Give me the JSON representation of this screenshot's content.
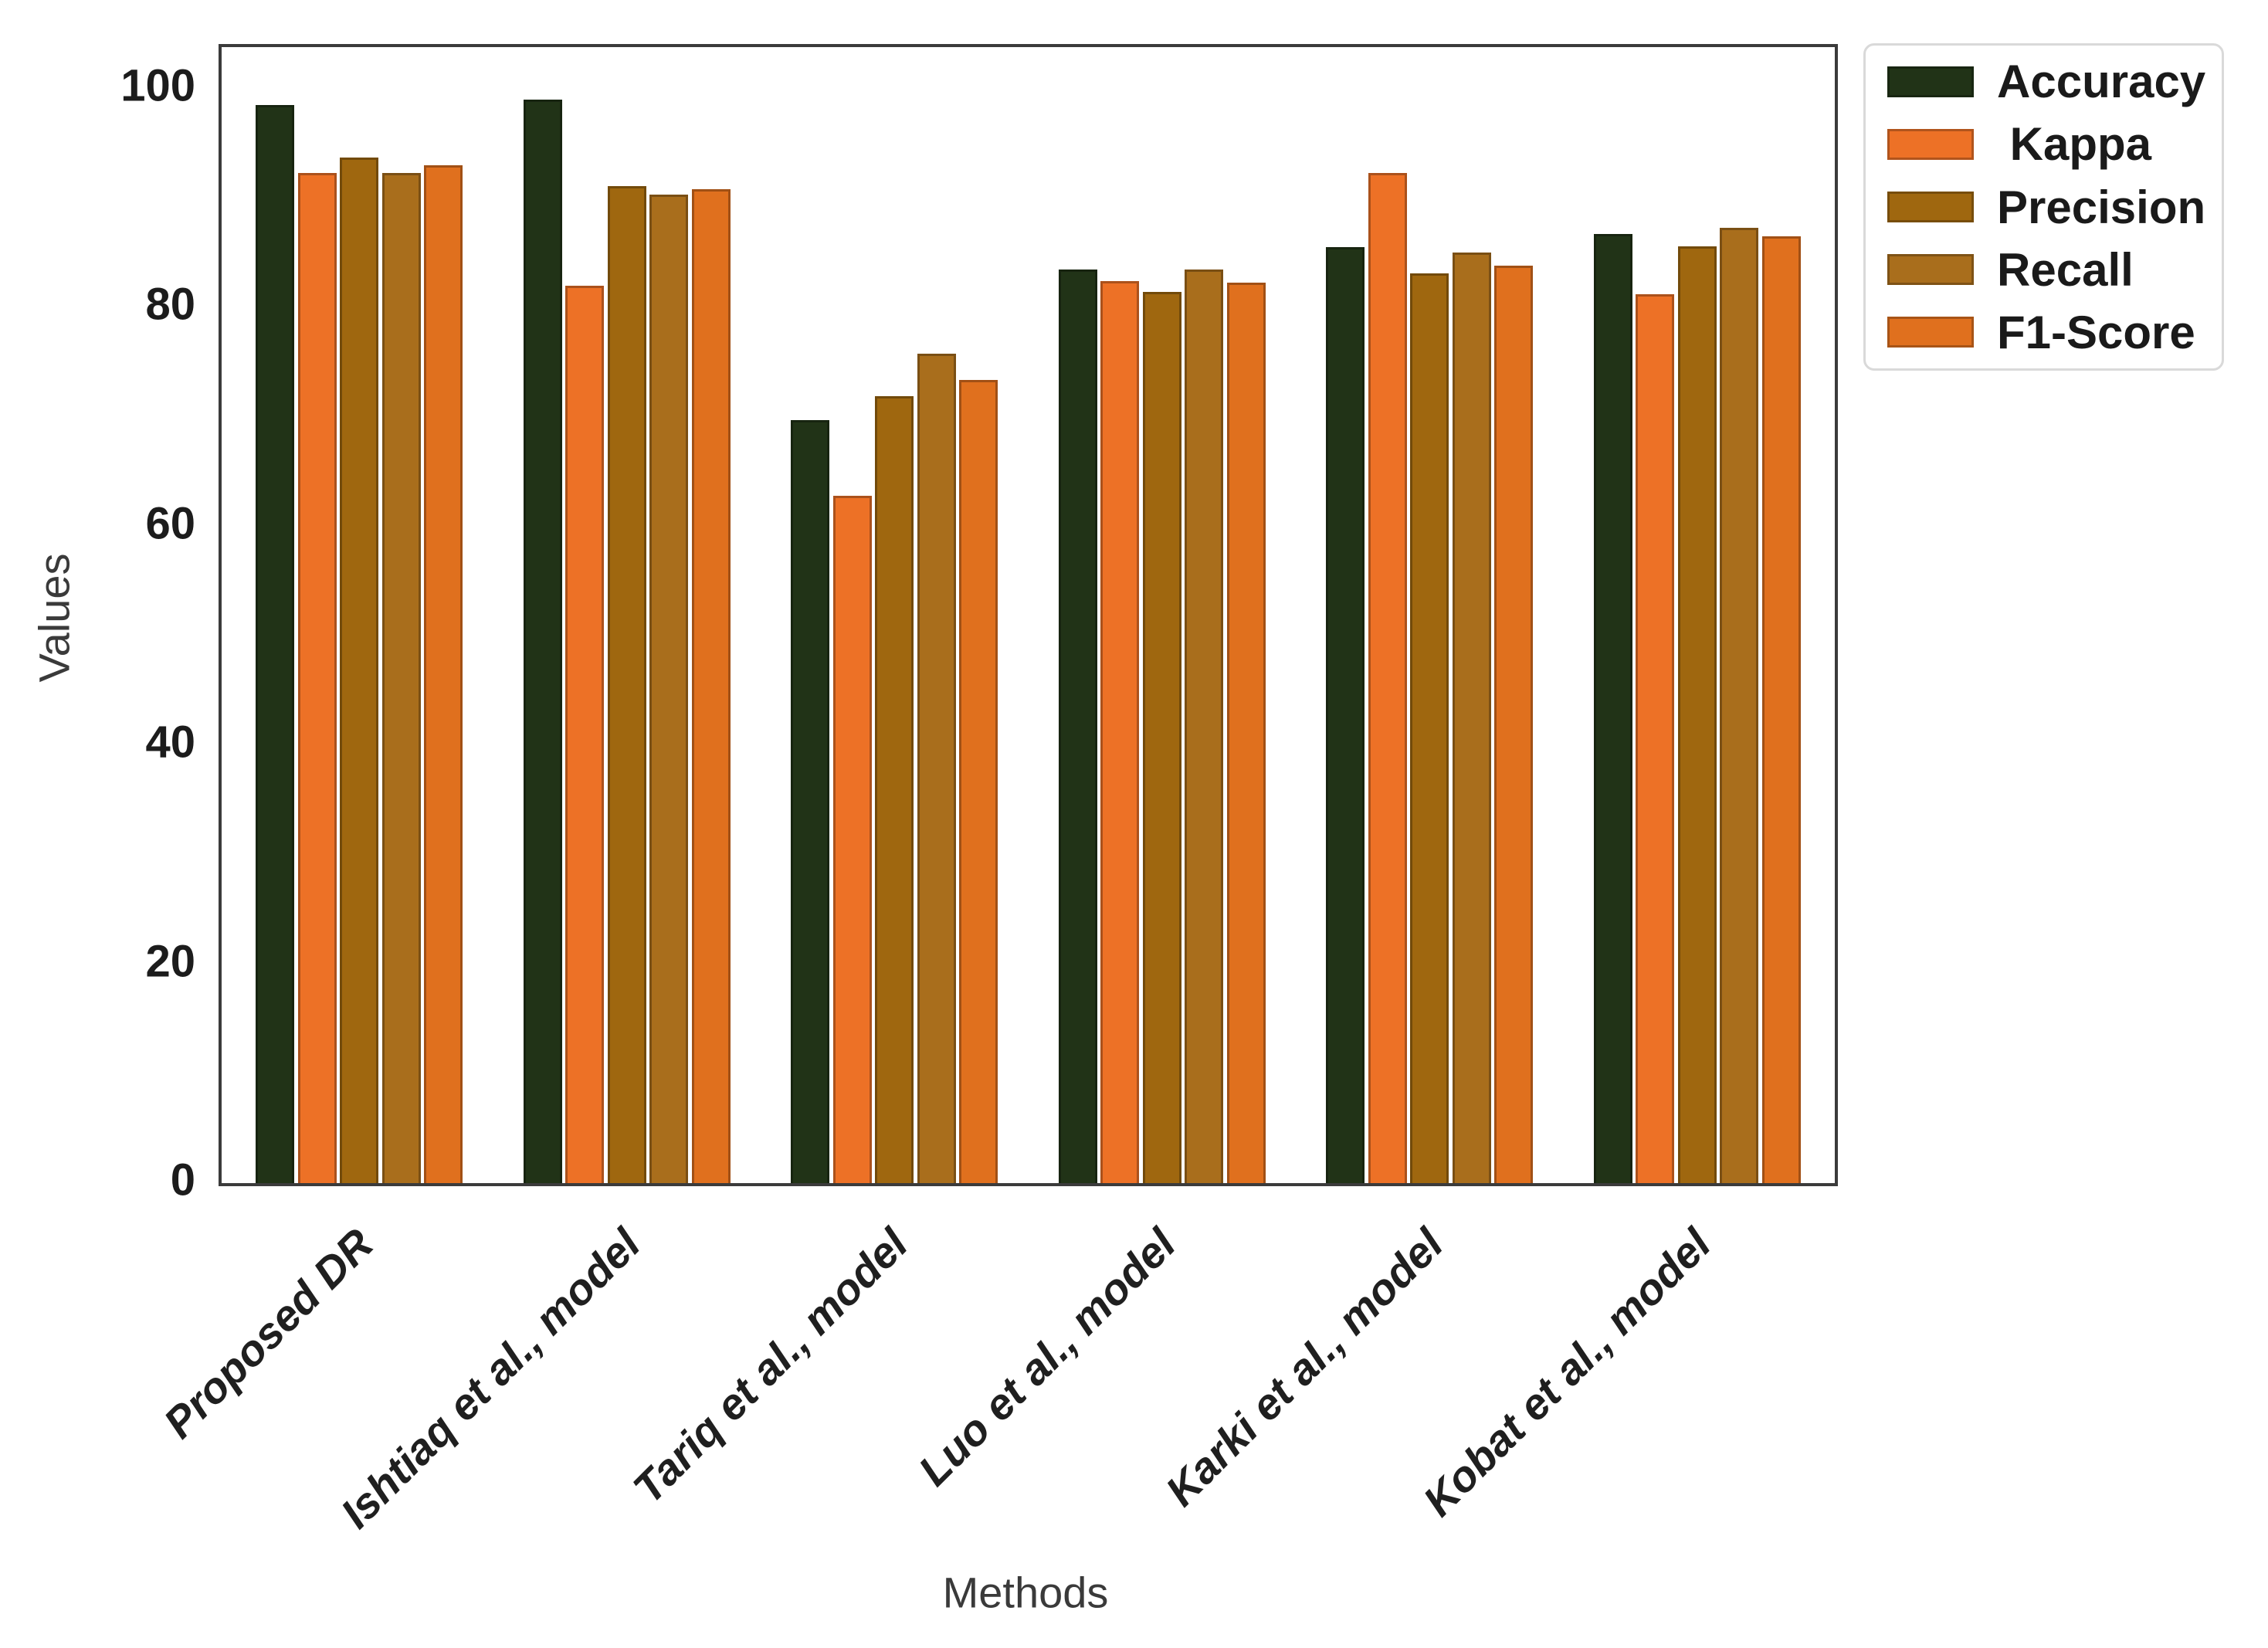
{
  "chart_data": {
    "type": "bar",
    "title": "",
    "xlabel": "Methods",
    "ylabel": "Values",
    "categories": [
      "Proposed DR",
      "Ishtiaq et al., model",
      "Tariq et al., model",
      "Luo et al., model",
      "Karki et al., model",
      "Kobat et al., model"
    ],
    "series": [
      {
        "name": "Accuracy",
        "color": "#213317",
        "values": [
          98.5,
          99.0,
          69.7,
          83.5,
          85.5,
          86.7
        ]
      },
      {
        "name": " Kappa",
        "color": "#ed7126",
        "values": [
          92.3,
          82.0,
          62.8,
          82.4,
          92.3,
          81.2
        ]
      },
      {
        "name": "Precision",
        "color": "#9f670f",
        "values": [
          93.7,
          91.1,
          71.9,
          81.4,
          83.1,
          85.6
        ]
      },
      {
        "name": "Recall",
        "color": "#a96e1c",
        "values": [
          92.3,
          90.3,
          75.8,
          83.5,
          85.0,
          87.3
        ]
      },
      {
        "name": "F1-Score",
        "color": "#e0701e",
        "values": [
          93.0,
          90.8,
          73.4,
          82.3,
          83.8,
          86.5
        ]
      }
    ],
    "yticks": [
      0,
      20,
      40,
      60,
      80,
      100
    ],
    "ylim": [
      0,
      103.8
    ],
    "grid": false,
    "legend_position": "outside upper right",
    "axis_color": "#3b3b3b",
    "tick_label_color": "#1c1c1c"
  }
}
